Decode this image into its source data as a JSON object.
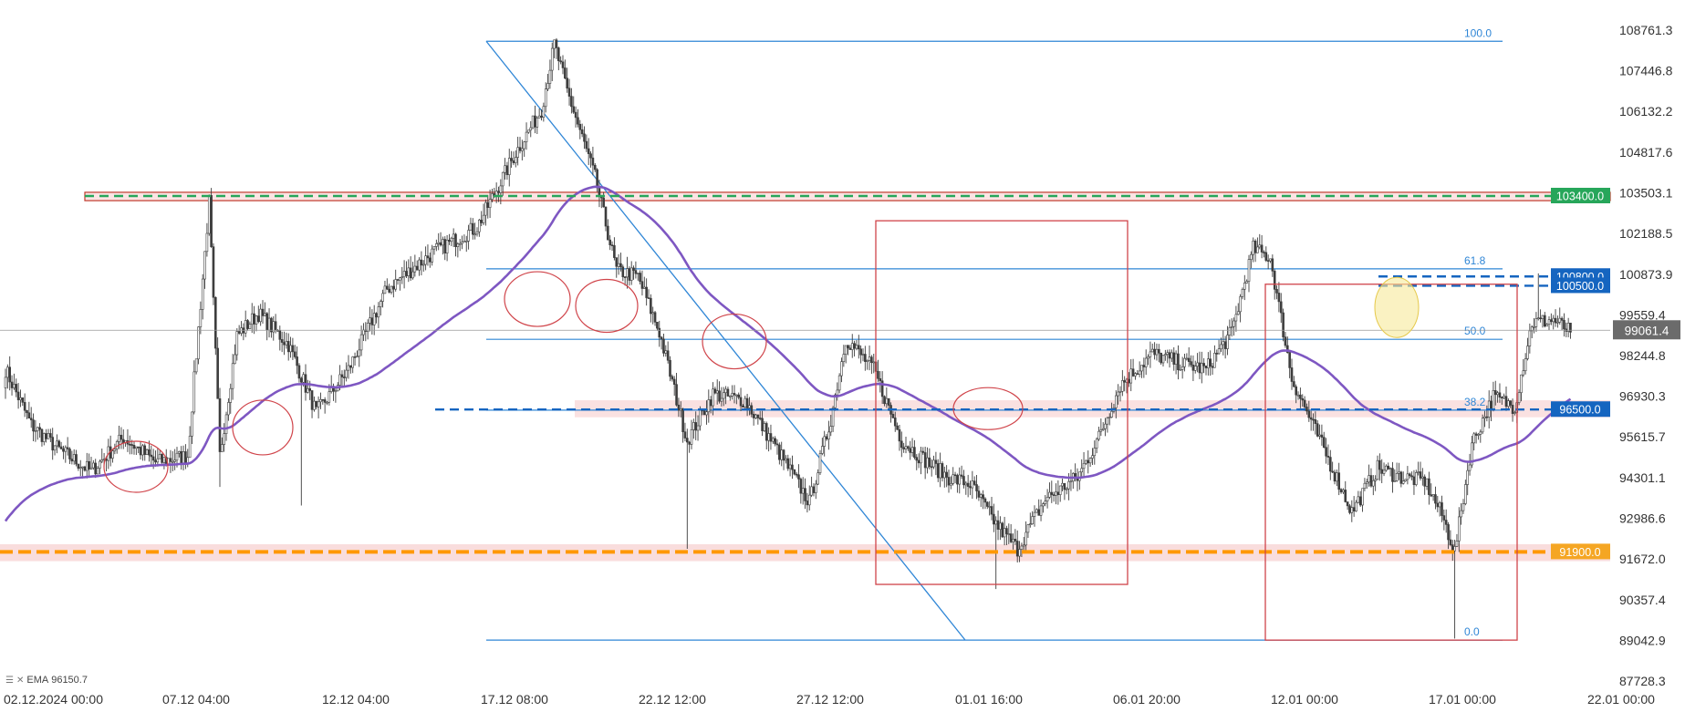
{
  "chart_data": {
    "type": "candlestick",
    "title": "",
    "xlabel": "",
    "ylabel": "",
    "ylim": [
      87200,
      109350
    ],
    "y_ticks": [
      "108761.3",
      "107446.8",
      "106132.2",
      "104817.6",
      "103503.1",
      "102188.5",
      "100873.9",
      "99559.4",
      "98244.8",
      "96930.3",
      "95615.7",
      "94301.1",
      "92986.6",
      "91672.0",
      "90357.4",
      "89042.9",
      "87728.3"
    ],
    "x_ticks": [
      "02.12.2024  00:00",
      "07.12 04:00",
      "12.12 04:00",
      "17.12 08:00",
      "22.12 12:00",
      "27.12 12:00",
      "01.01 16:00",
      "06.01 20:00",
      "12.01 00:00",
      "17.01 00:00",
      "22.01 00:00"
    ],
    "current_price": {
      "label": "99061.4",
      "value": 99061.4
    },
    "horizontal_levels": [
      {
        "label": "103400.0",
        "value": 103400,
        "color": "#27a65a",
        "style": "dashed",
        "zone": true
      },
      {
        "label": "100800.0",
        "value": 100800,
        "color": "#1565c0",
        "style": "dashed"
      },
      {
        "label": "100500.0",
        "value": 100500,
        "color": "#1565c0",
        "style": "dashed"
      },
      {
        "label": "96500.0",
        "value": 96500,
        "color": "#1565c0",
        "style": "dashed",
        "zone": true
      },
      {
        "label": "91900.0",
        "value": 91900,
        "color": "#ff9800",
        "style": "dashed",
        "zone": true
      }
    ],
    "fibonacci": {
      "high": 108400,
      "low": 89050,
      "levels": [
        {
          "label": "100.0",
          "value": 108400
        },
        {
          "label": "61.8",
          "value": 101047
        },
        {
          "label": "50.0",
          "value": 98770
        },
        {
          "label": "38.2",
          "value": 96480
        },
        {
          "label": "0.0",
          "value": 89050
        }
      ]
    },
    "indicator": {
      "label": "EMA",
      "value": "96150.7",
      "color": "#7e57c2"
    },
    "candles_summary": {
      "open": 97200,
      "anchor_closes": [
        [
          0,
          97800
        ],
        [
          12,
          96000
        ],
        [
          25,
          95200
        ],
        [
          40,
          94500
        ],
        [
          55,
          95600
        ],
        [
          70,
          94800
        ],
        [
          85,
          95000
        ],
        [
          95,
          103200
        ],
        [
          100,
          95000
        ],
        [
          108,
          98900
        ],
        [
          118,
          99600
        ],
        [
          132,
          98600
        ],
        [
          145,
          96400
        ],
        [
          160,
          97800
        ],
        [
          178,
          100400
        ],
        [
          200,
          101600
        ],
        [
          220,
          102400
        ],
        [
          238,
          104800
        ],
        [
          250,
          106200
        ],
        [
          256,
          108300
        ],
        [
          262,
          106800
        ],
        [
          275,
          104000
        ],
        [
          285,
          101000
        ],
        [
          295,
          100800
        ],
        [
          305,
          99000
        ],
        [
          318,
          95500
        ],
        [
          330,
          97000
        ],
        [
          345,
          96800
        ],
        [
          360,
          95200
        ],
        [
          375,
          93500
        ],
        [
          385,
          96200
        ],
        [
          392,
          98800
        ],
        [
          405,
          97800
        ],
        [
          418,
          95500
        ],
        [
          430,
          94800
        ],
        [
          440,
          94300
        ],
        [
          450,
          94100
        ],
        [
          462,
          92800
        ],
        [
          472,
          92000
        ],
        [
          485,
          93600
        ],
        [
          500,
          94300
        ],
        [
          510,
          95600
        ],
        [
          520,
          97300
        ],
        [
          535,
          98300
        ],
        [
          548,
          98000
        ],
        [
          560,
          97800
        ],
        [
          572,
          99000
        ],
        [
          582,
          101700
        ],
        [
          590,
          101400
        ],
        [
          600,
          97500
        ],
        [
          615,
          95200
        ],
        [
          628,
          93200
        ],
        [
          640,
          94600
        ],
        [
          652,
          94300
        ],
        [
          662,
          94200
        ],
        [
          670,
          93100
        ],
        [
          676,
          91900
        ],
        [
          684,
          95400
        ],
        [
          694,
          96900
        ],
        [
          704,
          96600
        ],
        [
          712,
          99300
        ],
        [
          722,
          99400
        ],
        [
          730,
          99000
        ]
      ]
    }
  }
}
